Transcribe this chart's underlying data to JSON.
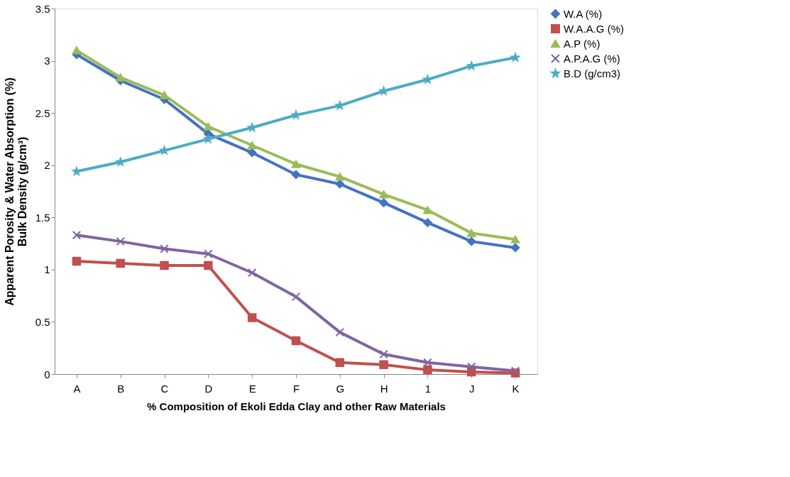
{
  "chart_data": {
    "type": "line",
    "xlabel": "% Composition of Ekoli Edda Clay and other Raw Materials",
    "ylabel": "Apparent Porosity & Water Absorption (%)\nBulk Density (g/cm³)",
    "categories": [
      "A",
      "B",
      "C",
      "D",
      "E",
      "F",
      "G",
      "H",
      "1",
      "J",
      "K"
    ],
    "ylim": [
      0,
      3.5
    ],
    "yticks": [
      0,
      0.5,
      1,
      1.5,
      2,
      2.5,
      3,
      3.5
    ],
    "grid": false,
    "legend": "right",
    "series": [
      {
        "name": "W.A (%)",
        "color": "#4472c4",
        "marker": "diamond",
        "values": [
          3.06,
          2.81,
          2.63,
          2.3,
          2.12,
          1.91,
          1.82,
          1.64,
          1.45,
          1.27,
          1.21
        ]
      },
      {
        "name": "W.A.A.G (%)",
        "color": "#c0504d",
        "marker": "square",
        "values": [
          1.08,
          1.06,
          1.04,
          1.04,
          0.54,
          0.32,
          0.11,
          0.09,
          0.04,
          0.02,
          0.01
        ]
      },
      {
        "name": "A.P (%)",
        "color": "#9bbb59",
        "marker": "triangle",
        "values": [
          3.1,
          2.84,
          2.67,
          2.37,
          2.19,
          2.01,
          1.89,
          1.72,
          1.57,
          1.35,
          1.29
        ]
      },
      {
        "name": "A.P.A.G (%)",
        "color": "#8064a2",
        "marker": "cross",
        "values": [
          1.33,
          1.27,
          1.2,
          1.15,
          0.97,
          0.74,
          0.4,
          0.19,
          0.11,
          0.07,
          0.03
        ]
      },
      {
        "name": "B.D (g/cm3)",
        "color": "#4bacc6",
        "marker": "star",
        "values": [
          1.94,
          2.03,
          2.14,
          2.25,
          2.36,
          2.48,
          2.57,
          2.71,
          2.82,
          2.95,
          3.03
        ]
      }
    ]
  }
}
